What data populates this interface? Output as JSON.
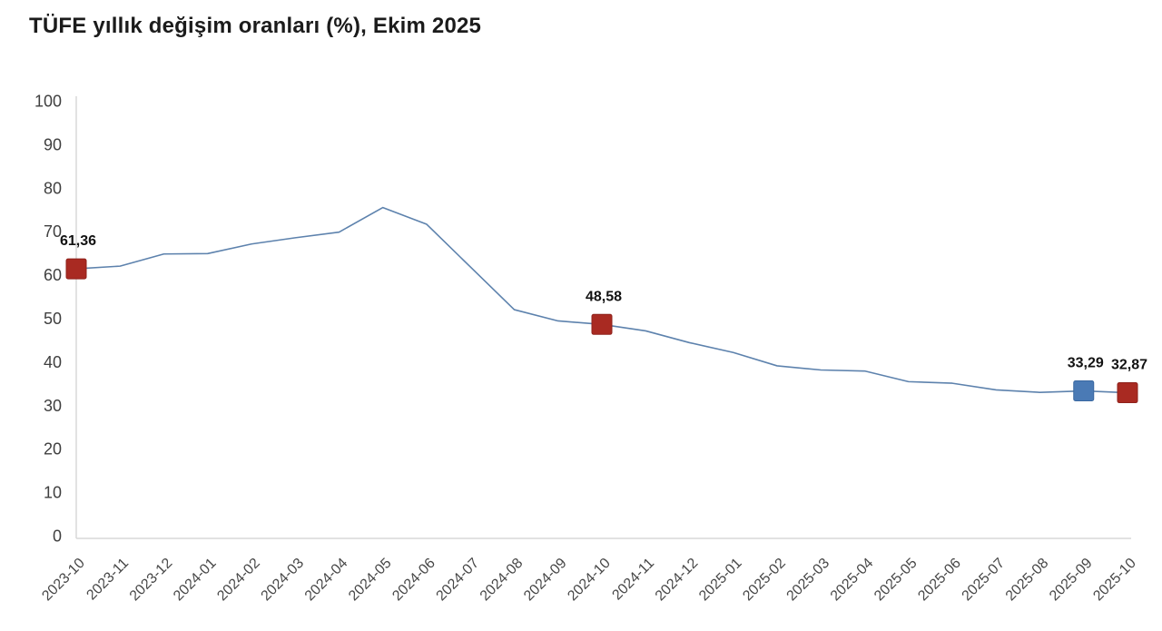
{
  "title": "TÜFE yıllık değişim oranları (%), Ekim 2025",
  "chart_data": {
    "type": "line",
    "title": "TÜFE yıllık değişim oranları (%), Ekim 2025",
    "xlabel": "",
    "ylabel": "",
    "ylim": [
      0,
      100
    ],
    "ytick_step": 10,
    "grid": false,
    "legend": "none",
    "categories": [
      "2023-10",
      "2023-11",
      "2023-12",
      "2024-01",
      "2024-02",
      "2024-03",
      "2024-04",
      "2024-05",
      "2024-06",
      "2024-07",
      "2024-08",
      "2024-09",
      "2024-10",
      "2024-11",
      "2024-12",
      "2025-01",
      "2025-02",
      "2025-03",
      "2025-04",
      "2025-05",
      "2025-06",
      "2025-07",
      "2025-08",
      "2025-09",
      "2025-10"
    ],
    "values": [
      61.36,
      61.98,
      64.77,
      64.86,
      67.07,
      68.5,
      69.8,
      75.45,
      71.6,
      61.78,
      51.97,
      49.38,
      48.58,
      47.09,
      44.38,
      42.12,
      39.05,
      38.1,
      37.86,
      35.41,
      35.05,
      33.52,
      32.95,
      33.29,
      32.87
    ],
    "line_color": "#5d82ad",
    "axis_color": "#d8d8d8",
    "tick_color": "#3f3f3f",
    "value_label_color": "#121212",
    "highlights": [
      {
        "category": "2023-10",
        "value": 61.36,
        "label": "61,36",
        "color": "#a92a22",
        "border": "#8e211b"
      },
      {
        "category": "2024-10",
        "value": 48.58,
        "label": "48,58",
        "color": "#a92a22",
        "border": "#8e211b"
      },
      {
        "category": "2025-09",
        "value": 33.29,
        "label": "33,29",
        "color": "#4a7ab5",
        "border": "#3a68a0"
      },
      {
        "category": "2025-10",
        "value": 32.87,
        "label": "32,87",
        "color": "#a92a22",
        "border": "#8e211b"
      }
    ]
  }
}
